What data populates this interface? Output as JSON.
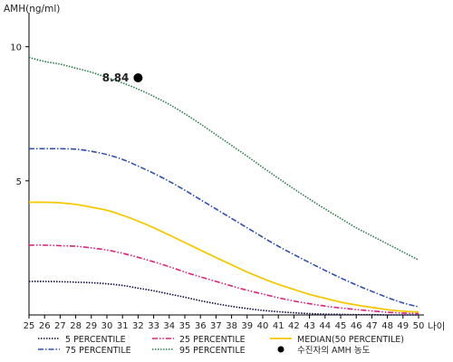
{
  "chart_data": {
    "type": "line",
    "ylabel": "AMH(ng/ml)",
    "xlabel": "나이",
    "xlim": [
      25,
      50
    ],
    "ylim": [
      0,
      11
    ],
    "x_ticks": [
      25,
      26,
      27,
      28,
      29,
      30,
      31,
      32,
      33,
      34,
      35,
      36,
      37,
      38,
      39,
      40,
      41,
      42,
      43,
      44,
      45,
      46,
      47,
      48,
      49,
      50
    ],
    "y_ticks": [
      5,
      10
    ],
    "grid": false,
    "legend_position": "bottom",
    "x": [
      25,
      26,
      27,
      28,
      29,
      30,
      31,
      32,
      33,
      34,
      35,
      36,
      37,
      38,
      39,
      40,
      41,
      42,
      43,
      44,
      45,
      46,
      47,
      48,
      49,
      50
    ],
    "series": [
      {
        "name": "5 PERCENTILE",
        "color": "#0a0a3c",
        "dash": "dotted",
        "values": [
          1.25,
          1.25,
          1.24,
          1.22,
          1.2,
          1.16,
          1.1,
          1.0,
          0.9,
          0.78,
          0.66,
          0.53,
          0.42,
          0.32,
          0.24,
          0.17,
          0.12,
          0.08,
          0.05,
          0.03,
          0.02,
          0.01,
          0.01,
          0.0,
          0.0,
          0.0
        ]
      },
      {
        "name": "25 PERCENTILE",
        "color": "#e0207a",
        "dash": "dashdotdot",
        "values": [
          2.6,
          2.6,
          2.58,
          2.56,
          2.5,
          2.42,
          2.3,
          2.15,
          1.98,
          1.8,
          1.6,
          1.42,
          1.25,
          1.08,
          0.92,
          0.78,
          0.64,
          0.52,
          0.42,
          0.33,
          0.26,
          0.2,
          0.15,
          0.1,
          0.07,
          0.05
        ]
      },
      {
        "name": "MEDIAN(50 PERCENTILE)",
        "color": "#f5c800",
        "dash": "solid",
        "values": [
          4.2,
          4.2,
          4.18,
          4.12,
          4.02,
          3.9,
          3.72,
          3.5,
          3.25,
          2.98,
          2.7,
          2.42,
          2.14,
          1.87,
          1.6,
          1.36,
          1.14,
          0.95,
          0.77,
          0.62,
          0.48,
          0.37,
          0.28,
          0.2,
          0.14,
          0.11
        ]
      },
      {
        "name": "75 PERCENTILE",
        "color": "#2f4fb0",
        "dash": "dashdot",
        "values": [
          6.2,
          6.2,
          6.2,
          6.18,
          6.1,
          5.98,
          5.8,
          5.55,
          5.28,
          4.98,
          4.65,
          4.3,
          3.95,
          3.6,
          3.25,
          2.9,
          2.56,
          2.25,
          1.95,
          1.66,
          1.38,
          1.12,
          0.88,
          0.65,
          0.45,
          0.3
        ]
      },
      {
        "name": "95 PERCENTILE",
        "color": "#2a7a4a",
        "dash": "dotted",
        "values": [
          9.6,
          9.45,
          9.35,
          9.2,
          9.05,
          8.85,
          8.65,
          8.42,
          8.15,
          7.85,
          7.5,
          7.12,
          6.72,
          6.32,
          5.92,
          5.5,
          5.1,
          4.7,
          4.32,
          3.95,
          3.6,
          3.25,
          2.95,
          2.65,
          2.35,
          2.05
        ]
      }
    ],
    "marker": {
      "name": "수진자의 AMH 농도",
      "x": 32,
      "y": 8.84,
      "label": "8.84",
      "color": "#000000"
    },
    "legend_order": [
      "5 PERCENTILE",
      "25 PERCENTILE",
      "MEDIAN(50 PERCENTILE)",
      "75 PERCENTILE",
      "95 PERCENTILE",
      "수진자의 AMH 농도"
    ]
  }
}
